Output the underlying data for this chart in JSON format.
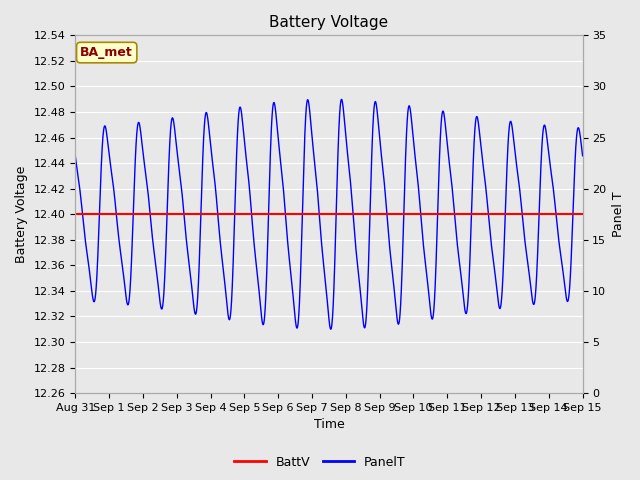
{
  "title": "Battery Voltage",
  "xlabel": "Time",
  "ylabel_left": "Battery Voltage",
  "ylabel_right": "Panel T",
  "annotation_text": "BA_met",
  "batt_voltage": 12.4,
  "ylim_left": [
    12.26,
    12.54
  ],
  "ylim_right": [
    0,
    35
  ],
  "yticks_left": [
    12.26,
    12.28,
    12.3,
    12.32,
    12.34,
    12.36,
    12.38,
    12.4,
    12.42,
    12.44,
    12.46,
    12.48,
    12.5,
    12.52,
    12.54
  ],
  "yticks_right": [
    0,
    5,
    10,
    15,
    20,
    25,
    30,
    35
  ],
  "background_color": "#e8e8e8",
  "fig_background_color": "#e8e8e8",
  "line_color_batt": "red",
  "line_color_panel": "blue",
  "grid_color": "white",
  "title_fontsize": 11,
  "label_fontsize": 9,
  "tick_fontsize": 8,
  "annotation_fontsize": 9,
  "legend_fontsize": 9,
  "tick_labels": [
    "Aug 31",
    "Sep 1",
    "Sep 2",
    "Sep 3",
    "Sep 4",
    "Sep 5",
    "Sep 6",
    "Sep 7",
    "Sep 8",
    "Sep 9",
    "Sep 10",
    "Sep 11",
    "Sep 12",
    "Sep 13",
    "Sep 14",
    "Sep 15"
  ]
}
